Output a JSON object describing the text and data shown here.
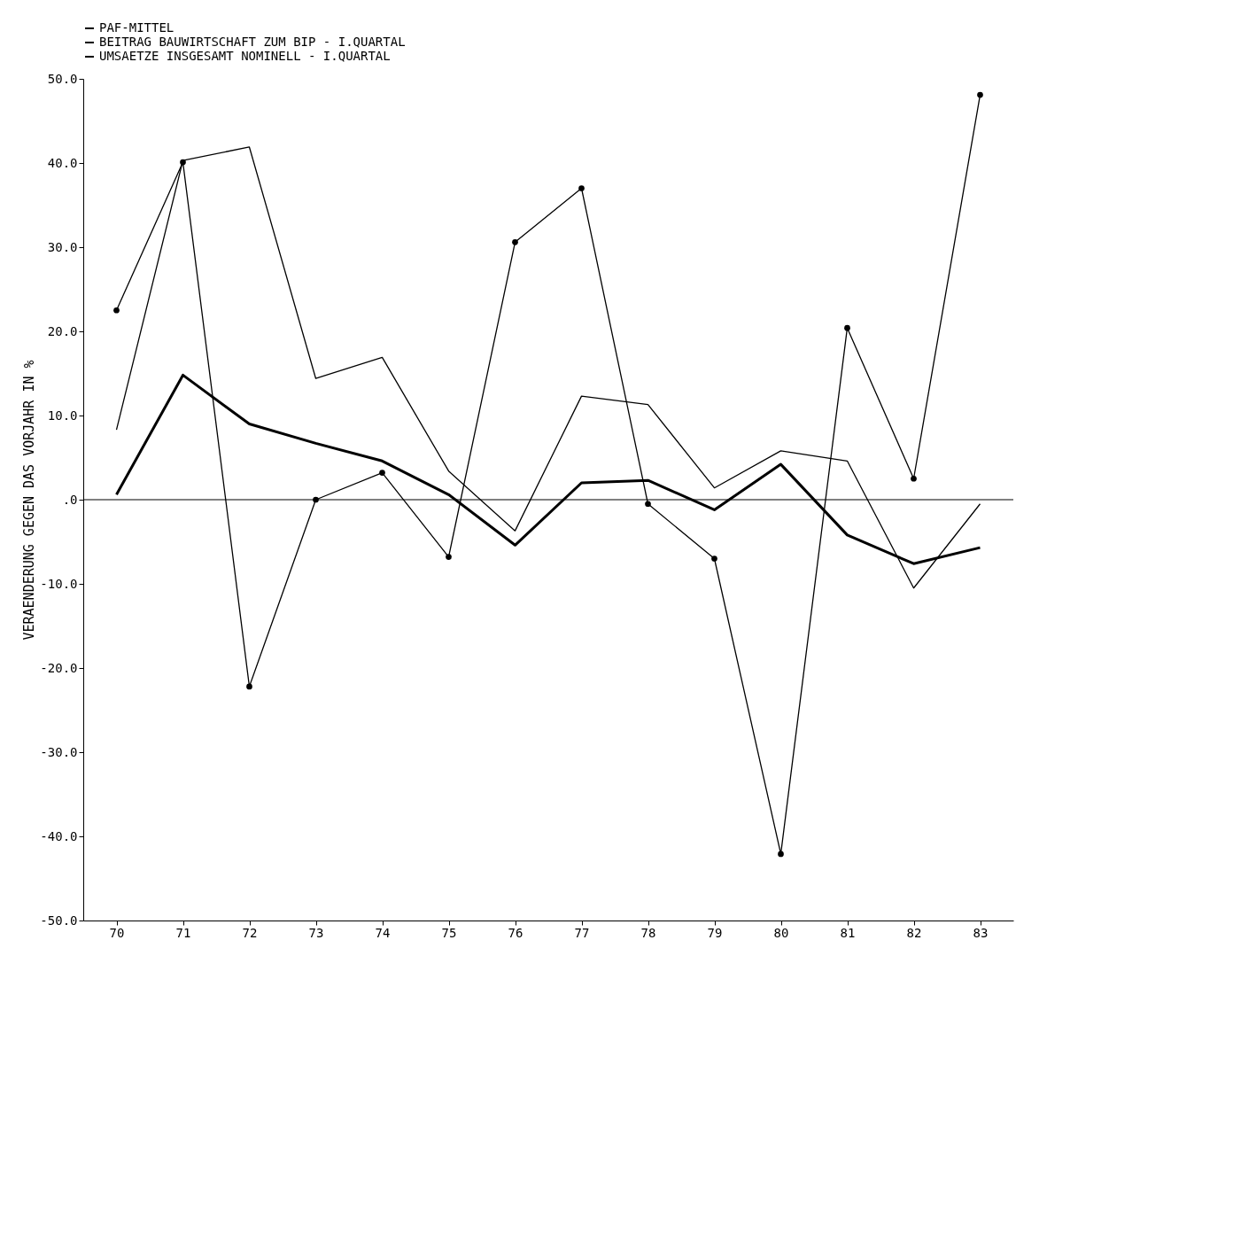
{
  "chart_data": {
    "type": "line",
    "ylabel": "VERAENDERUNG GEGEN DAS VORJAHR IN %",
    "categories": [
      "70",
      "71",
      "72",
      "73",
      "74",
      "75",
      "76",
      "77",
      "78",
      "79",
      "80",
      "81",
      "82",
      "83"
    ],
    "series": [
      {
        "name": "PAF-MITTEL",
        "color": "#000000",
        "marker": "circle",
        "values": [
          22.5,
          40.1,
          -22.2,
          0,
          3.2,
          -6.8,
          30.6,
          37.0,
          -0.5,
          -7.0,
          -42.1,
          20.4,
          2.5,
          48.1
        ]
      },
      {
        "name": "BEITRAG BAUWIRTSCHAFT ZUM BIP - I.QUARTAL",
        "color": "#000000",
        "values": [
          0.6,
          14.8,
          9.0,
          6.7,
          4.6,
          0.6,
          -5.4,
          2.0,
          2.3,
          -1.2,
          4.2,
          -4.2,
          -7.6,
          -5.7
        ]
      },
      {
        "name": "UMSAETZE INSGESAMT NOMINELL - I.QUARTAL",
        "color": "#000000",
        "values": [
          8.3,
          40.3,
          41.9,
          14.4,
          16.9,
          3.4,
          -3.7,
          12.3,
          11.3,
          1.4,
          5.8,
          4.6,
          -10.5,
          -0.5
        ]
      }
    ],
    "ylim": [
      -50,
      50
    ],
    "yticks": [
      {
        "value": -50,
        "label": "-50.0"
      },
      {
        "value": -40,
        "label": "-40.0"
      },
      {
        "value": -30,
        "label": "-30.0"
      },
      {
        "value": -20,
        "label": "-20.0"
      },
      {
        "value": -10,
        "label": "-10.0"
      },
      {
        "value": 0,
        "label": ".0"
      },
      {
        "value": 10,
        "label": "10.0"
      },
      {
        "value": 20,
        "label": "20.0"
      },
      {
        "value": 30,
        "label": "30.0"
      },
      {
        "value": 40,
        "label": "40.0"
      },
      {
        "value": 50,
        "label": "50.0"
      }
    ],
    "ref_lines": [
      {
        "axis": "y",
        "value": 0
      }
    ],
    "legend": "top",
    "grid": false
  }
}
